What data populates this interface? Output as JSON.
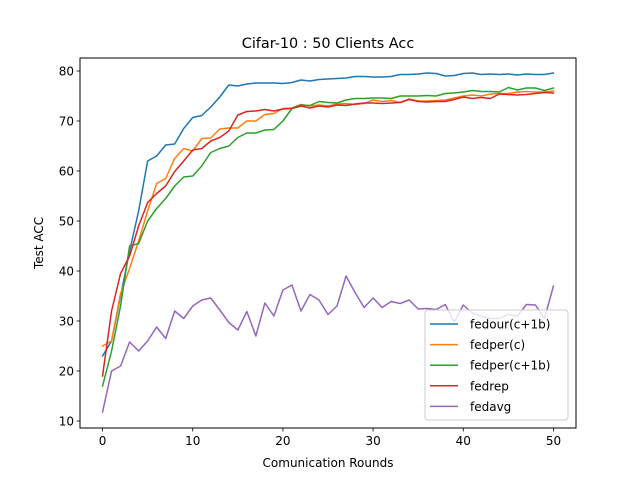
{
  "chart_data": {
    "type": "line",
    "title": "Cifar-10 : 50 Clients Acc",
    "xlabel": "Comunication Rounds",
    "ylabel": "Test ACC",
    "xlim": [
      -2.5,
      52.5
    ],
    "ylim": [
      8.6,
      82.6
    ],
    "xticks": [
      0,
      10,
      20,
      30,
      40,
      50
    ],
    "yticks": [
      10,
      20,
      30,
      40,
      50,
      60,
      70,
      80
    ],
    "grid": false,
    "legend_position": "lower-right",
    "x": [
      0,
      1,
      2,
      3,
      4,
      5,
      6,
      7,
      8,
      9,
      10,
      11,
      12,
      13,
      14,
      15,
      16,
      17,
      18,
      19,
      20,
      21,
      22,
      23,
      24,
      25,
      26,
      27,
      28,
      29,
      30,
      31,
      32,
      33,
      34,
      35,
      36,
      37,
      38,
      39,
      40,
      41,
      42,
      43,
      44,
      45,
      46,
      47,
      48,
      49,
      50
    ],
    "series": [
      {
        "name": "fedour(c+1b)",
        "color": "#1f77b4",
        "values": [
          23.0,
          26.0,
          35.0,
          44.0,
          52.0,
          62.0,
          63.0,
          65.2,
          65.4,
          68.5,
          70.7,
          71.1,
          72.8,
          74.8,
          77.2,
          77.0,
          77.4,
          77.6,
          77.6,
          77.6,
          77.5,
          77.7,
          78.2,
          78.0,
          78.3,
          78.4,
          78.5,
          78.6,
          78.9,
          78.9,
          78.8,
          78.8,
          78.9,
          79.3,
          79.3,
          79.4,
          79.6,
          79.5,
          79.0,
          79.1,
          79.5,
          79.6,
          79.3,
          79.4,
          79.3,
          79.4,
          79.2,
          79.4,
          79.3,
          79.3,
          79.6
        ]
      },
      {
        "name": "fedper(c)",
        "color": "#ff7f0e",
        "values": [
          25.0,
          26.0,
          35.5,
          40.5,
          46.0,
          52.0,
          57.5,
          58.5,
          62.5,
          64.5,
          64.0,
          66.5,
          66.6,
          68.4,
          68.6,
          68.6,
          70.0,
          70.0,
          71.3,
          71.5,
          72.5,
          72.6,
          73.3,
          73.0,
          73.2,
          73.0,
          73.4,
          73.5,
          73.3,
          73.5,
          74.2,
          73.9,
          74.1,
          73.7,
          74.4,
          74.0,
          74.0,
          74.1,
          74.2,
          74.6,
          75.0,
          75.2,
          75.0,
          75.4,
          75.5,
          75.5,
          75.8,
          75.9,
          75.8,
          75.8,
          76.0
        ]
      },
      {
        "name": "fedper(c+1b)",
        "color": "#2ca02c",
        "values": [
          17.0,
          24.0,
          33.0,
          45.0,
          45.5,
          50.0,
          52.5,
          54.5,
          57.0,
          58.8,
          59.0,
          61.0,
          63.7,
          64.5,
          65.0,
          66.7,
          67.6,
          67.6,
          68.2,
          68.3,
          70.0,
          72.5,
          73.2,
          73.1,
          73.9,
          73.7,
          73.6,
          74.2,
          74.5,
          74.5,
          74.6,
          74.6,
          74.5,
          75.0,
          75.0,
          75.0,
          75.1,
          75.0,
          75.5,
          75.6,
          75.8,
          76.1,
          75.9,
          75.9,
          75.8,
          76.7,
          76.2,
          76.6,
          76.6,
          76.1,
          76.6
        ]
      },
      {
        "name": "fedrep",
        "color": "#d62728",
        "values": [
          19.0,
          32.0,
          39.5,
          43.0,
          49.0,
          53.7,
          55.5,
          57.0,
          59.9,
          62.0,
          64.2,
          64.5,
          66.0,
          66.7,
          68.0,
          71.2,
          71.9,
          72.0,
          72.3,
          72.0,
          72.4,
          72.5,
          73.0,
          72.6,
          73.0,
          72.8,
          73.2,
          73.1,
          73.4,
          73.6,
          73.6,
          73.5,
          73.6,
          73.7,
          74.3,
          73.9,
          73.8,
          73.9,
          73.9,
          74.3,
          74.8,
          74.5,
          74.7,
          74.5,
          75.4,
          75.3,
          75.2,
          75.3,
          75.5,
          75.7,
          75.6
        ]
      },
      {
        "name": "fedavg",
        "color": "#9467bd",
        "values": [
          11.8,
          20.0,
          21.0,
          25.8,
          24.0,
          26.0,
          28.8,
          26.5,
          32.0,
          30.5,
          33.0,
          34.2,
          34.6,
          32.2,
          29.7,
          28.2,
          31.9,
          27.0,
          33.6,
          31.0,
          36.2,
          37.2,
          32.0,
          35.3,
          34.2,
          31.3,
          33.0,
          39.0,
          35.7,
          32.7,
          34.6,
          32.7,
          33.9,
          33.5,
          34.2,
          32.4,
          32.5,
          32.3,
          33.3,
          29.8,
          33.2,
          31.6,
          31.0,
          30.5,
          30.5,
          31.3,
          31.0,
          33.3,
          33.2,
          30.5,
          37.0
        ]
      }
    ]
  }
}
